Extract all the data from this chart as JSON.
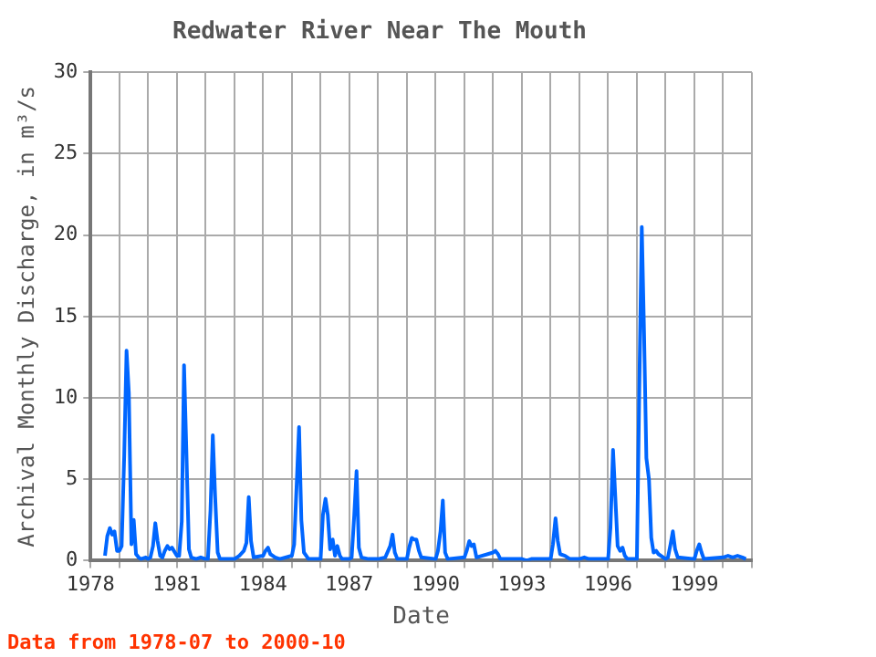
{
  "chart_data": {
    "type": "line",
    "title": "Redwater River Near The Mouth",
    "xlabel": "Date",
    "ylabel": "Archival Monthly Discharge, in m³/s",
    "annotations": [
      "Data from 1978-07 to 2000-10"
    ],
    "xlim": [
      1978,
      2001
    ],
    "xticks": [
      1978,
      {
        "value": 1979,
        "label": null
      },
      {
        "value": 1980,
        "label": null
      },
      1981,
      {
        "value": 1982,
        "label": null
      },
      {
        "value": 1983,
        "label": null
      },
      1984,
      {
        "value": 1985,
        "label": null
      },
      {
        "value": 1986,
        "label": null
      },
      1987,
      {
        "value": 1988,
        "label": null
      },
      {
        "value": 1989,
        "label": null
      },
      1990,
      {
        "value": 1991,
        "label": null
      },
      {
        "value": 1992,
        "label": null
      },
      1993,
      {
        "value": 1994,
        "label": null
      },
      {
        "value": 1995,
        "label": null
      },
      1996,
      {
        "value": 1997,
        "label": null
      },
      {
        "value": 1998,
        "label": null
      },
      1999,
      {
        "value": 2000,
        "label": null
      },
      {
        "value": 2001,
        "label": null
      }
    ],
    "ylim": [
      0,
      30
    ],
    "yticks": [
      0,
      5,
      10,
      15,
      20,
      25,
      30
    ],
    "grid": true,
    "legend": false,
    "marker": "none",
    "line_style": "solid",
    "series": [
      {
        "color": "#0066ff",
        "x": [
          1978.5,
          1978.58,
          1978.67,
          1978.75,
          1978.83,
          1978.92,
          1979.0,
          1979.08,
          1979.17,
          1979.25,
          1979.33,
          1979.42,
          1979.5,
          1979.58,
          1979.67,
          1979.75,
          1979.92,
          1980.0,
          1980.08,
          1980.17,
          1980.25,
          1980.33,
          1980.42,
          1980.5,
          1980.58,
          1980.67,
          1980.75,
          1980.83,
          1981.0,
          1981.08,
          1981.17,
          1981.25,
          1981.33,
          1981.42,
          1981.5,
          1981.67,
          1981.83,
          1982.0,
          1982.08,
          1982.17,
          1982.25,
          1982.33,
          1982.42,
          1982.5,
          1982.75,
          1983.0,
          1983.17,
          1983.33,
          1983.42,
          1983.5,
          1983.58,
          1983.67,
          1984.0,
          1984.08,
          1984.17,
          1984.25,
          1984.42,
          1984.58,
          1985.0,
          1985.08,
          1985.17,
          1985.25,
          1985.33,
          1985.42,
          1985.58,
          1986.0,
          1986.08,
          1986.17,
          1986.25,
          1986.33,
          1986.42,
          1986.5,
          1986.58,
          1986.67,
          1986.75,
          1987.0,
          1987.08,
          1987.17,
          1987.25,
          1987.33,
          1987.42,
          1987.67,
          1988.0,
          1988.25,
          1988.42,
          1988.5,
          1988.58,
          1988.67,
          1989.0,
          1989.08,
          1989.17,
          1989.25,
          1989.33,
          1989.42,
          1989.5,
          1990.0,
          1990.08,
          1990.17,
          1990.25,
          1990.33,
          1990.42,
          1991.0,
          1991.08,
          1991.17,
          1991.25,
          1991.33,
          1991.42,
          1992.0,
          1992.08,
          1992.17,
          1992.25,
          1992.5,
          1993.0,
          1993.17,
          1993.33,
          1993.5,
          1993.75,
          1994.0,
          1994.08,
          1994.17,
          1994.25,
          1994.33,
          1994.5,
          1994.67,
          1995.0,
          1995.17,
          1995.33,
          1995.5,
          1995.75,
          1996.0,
          1996.08,
          1996.17,
          1996.25,
          1996.33,
          1996.42,
          1996.5,
          1996.58,
          1996.67,
          1997.0,
          1997.08,
          1997.17,
          1997.25,
          1997.33,
          1997.42,
          1997.5,
          1997.58,
          1997.67,
          1997.75,
          1998.0,
          1998.08,
          1998.17,
          1998.25,
          1998.33,
          1998.42,
          1999.0,
          1999.08,
          1999.17,
          1999.25,
          1999.33,
          2000.0,
          2000.17,
          2000.33,
          2000.5,
          2000.67,
          2000.79
        ],
        "values": [
          0.3,
          1.5,
          2.0,
          1.6,
          1.8,
          0.6,
          0.6,
          0.9,
          6.5,
          12.9,
          10.3,
          1.0,
          2.5,
          0.4,
          0.2,
          0.1,
          0.2,
          0.1,
          0.2,
          0.9,
          2.3,
          1.2,
          0.3,
          0.2,
          0.6,
          0.9,
          0.7,
          0.8,
          0.3,
          0.3,
          2.4,
          12.0,
          6.8,
          0.7,
          0.2,
          0.1,
          0.2,
          0.1,
          0.1,
          3.1,
          7.7,
          4.0,
          0.5,
          0.1,
          0.1,
          0.1,
          0.3,
          0.6,
          1.1,
          3.9,
          1.2,
          0.2,
          0.3,
          0.6,
          0.8,
          0.4,
          0.2,
          0.1,
          0.3,
          1.0,
          4.8,
          8.2,
          2.5,
          0.5,
          0.1,
          0.1,
          2.8,
          3.8,
          2.8,
          0.7,
          1.3,
          0.3,
          0.9,
          0.3,
          0.1,
          0.1,
          0.2,
          2.8,
          5.5,
          0.8,
          0.2,
          0.1,
          0.1,
          0.2,
          0.9,
          1.6,
          0.5,
          0.1,
          0.1,
          0.8,
          1.4,
          1.3,
          1.3,
          0.6,
          0.2,
          0.1,
          0.6,
          1.8,
          3.7,
          0.5,
          0.1,
          0.2,
          0.6,
          1.2,
          0.9,
          1.0,
          0.2,
          0.5,
          0.6,
          0.4,
          0.1,
          0.1,
          0.1,
          0.0,
          0.1,
          0.1,
          0.1,
          0.1,
          1.0,
          2.6,
          1.2,
          0.4,
          0.3,
          0.1,
          0.1,
          0.2,
          0.1,
          0.1,
          0.1,
          0.1,
          2.0,
          6.8,
          3.9,
          0.9,
          0.6,
          0.8,
          0.3,
          0.1,
          0.1,
          10.1,
          20.5,
          13.9,
          6.3,
          5.0,
          1.4,
          0.5,
          0.6,
          0.4,
          0.1,
          0.2,
          1.0,
          1.8,
          0.7,
          0.2,
          0.1,
          0.6,
          1.0,
          0.5,
          0.1,
          0.2,
          0.3,
          0.2,
          0.3,
          0.2,
          0.1
        ]
      }
    ]
  }
}
